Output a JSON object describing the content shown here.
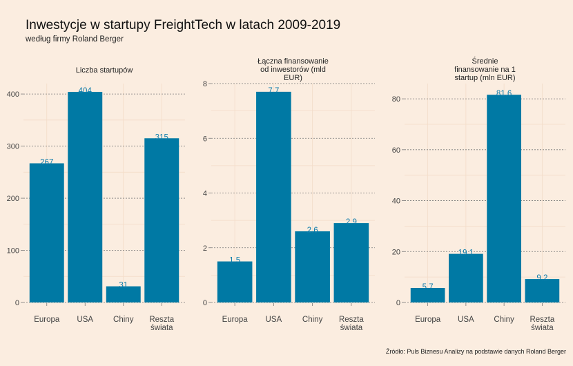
{
  "title": "Inwestycje w startupy FreightTech w latach 2009-2019",
  "subtitle": "według firmy Roland Berger",
  "source": "Źródło: Puls Biznesu Analizy na podstawie danych Roland Berger",
  "colors": {
    "bar": "#0079a4",
    "label": "#0f7cab",
    "background": "#fbede0"
  },
  "chart_data": [
    {
      "type": "bar",
      "title_lines": [
        "Liczba startupów"
      ],
      "categories": [
        [
          "Europa"
        ],
        [
          "USA"
        ],
        [
          "Chiny"
        ],
        [
          "Reszta",
          "świata"
        ]
      ],
      "values": [
        267,
        404,
        31,
        315
      ],
      "labels": [
        "267",
        "404",
        "31",
        "315"
      ],
      "ylim": [
        0,
        420
      ],
      "yticks": [
        0,
        100,
        200,
        300,
        400
      ],
      "grid": true
    },
    {
      "type": "bar",
      "title_lines": [
        "Łączna finansowanie",
        "od inwestorów (mld",
        "EUR)"
      ],
      "categories": [
        [
          "Europa"
        ],
        [
          "USA"
        ],
        [
          "Chiny"
        ],
        [
          "Reszta",
          "świata"
        ]
      ],
      "values": [
        1.5,
        7.7,
        2.6,
        2.9
      ],
      "labels": [
        "1.5",
        "7.7",
        "2.6",
        "2.9"
      ],
      "ylim": [
        0,
        8.0
      ],
      "yticks": [
        0,
        2,
        4,
        6,
        8
      ],
      "grid": true
    },
    {
      "type": "bar",
      "title_lines": [
        "Średnie",
        "finansowanie na 1",
        "startup (mln EUR)"
      ],
      "categories": [
        [
          "Europa"
        ],
        [
          "USA"
        ],
        [
          "Chiny"
        ],
        [
          "Reszta",
          "świata"
        ]
      ],
      "values": [
        5.7,
        19.1,
        81.6,
        9.2
      ],
      "labels": [
        "5.7",
        "19.1",
        "81.6",
        "9.2"
      ],
      "ylim": [
        0,
        86
      ],
      "yticks": [
        0,
        20,
        40,
        60,
        80
      ],
      "grid": true
    }
  ]
}
